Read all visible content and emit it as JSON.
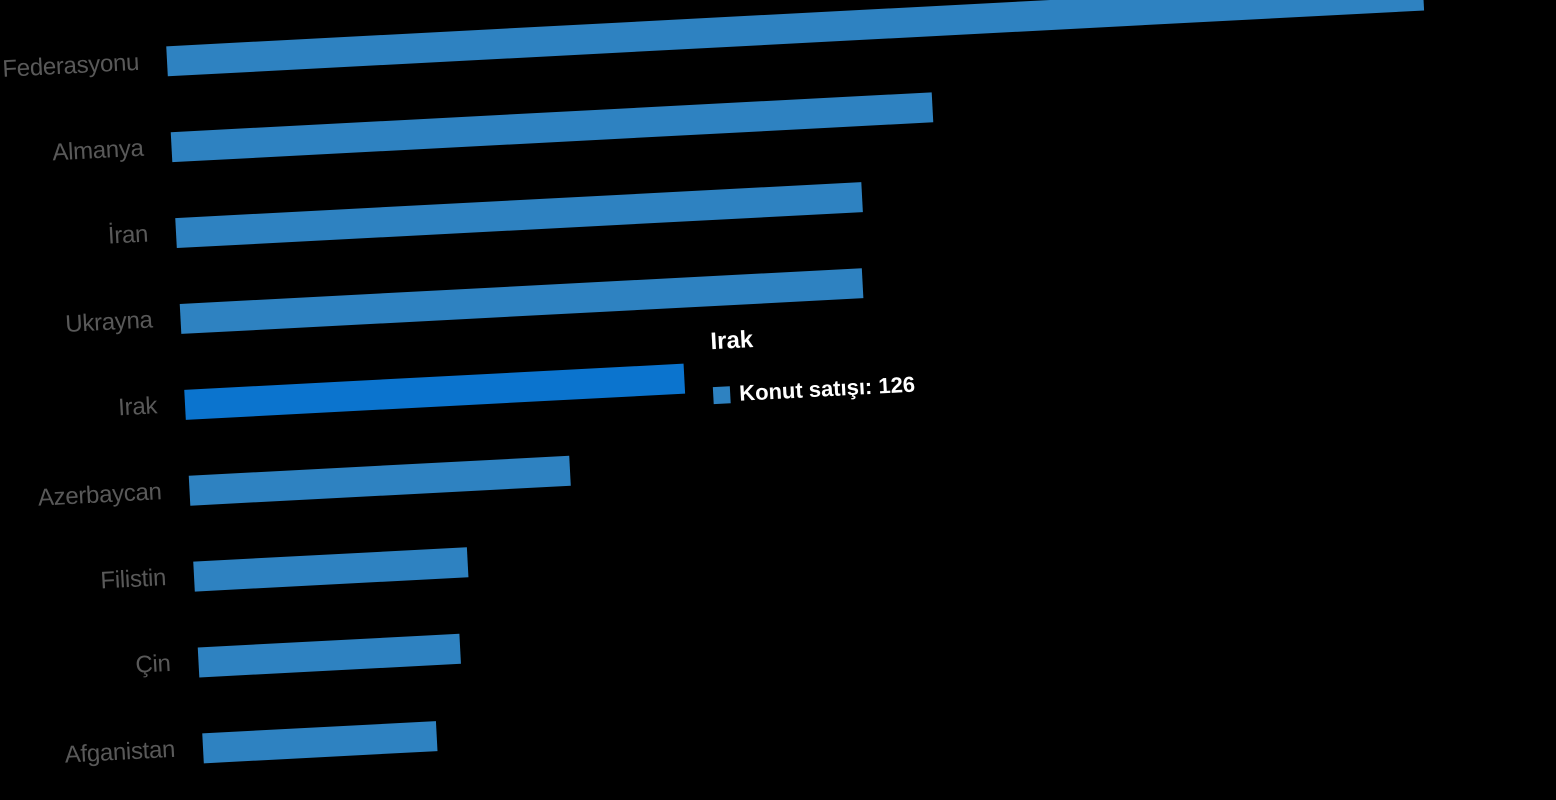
{
  "chart_data": {
    "type": "bar",
    "orientation": "horizontal",
    "title": "",
    "xlabel": "",
    "ylabel": "",
    "categories": [
      "Federasyonu",
      "Almanya",
      "İran",
      "Ukrayna",
      "Irak",
      "Azerbaycan",
      "Filistin",
      "Çin",
      "Afganistan"
    ],
    "series": [
      {
        "name": "Konut satışı",
        "values": [
          317,
          192,
          173,
          172,
          126,
          96,
          69,
          66,
          59
        ]
      }
    ],
    "highlighted_index": 4,
    "highlighted_category": "Irak",
    "tooltip": {
      "title": "Irak",
      "series_label": "Konut satışı",
      "value": 126,
      "text": "Konut satışı: 126"
    },
    "colors": {
      "background": "#000000",
      "bar": "#2E82C1",
      "highlight_bar": "#0B74CE",
      "category_label": "#595959",
      "tooltip_text": "#FFFFFF"
    },
    "layout_hints": {
      "gridlines": false,
      "axes_visible": false,
      "value_axis_hidden": true,
      "rotation_deg": -3,
      "first_bar_clipped_at_top": true,
      "first_label_clipped_at_left": true
    }
  }
}
